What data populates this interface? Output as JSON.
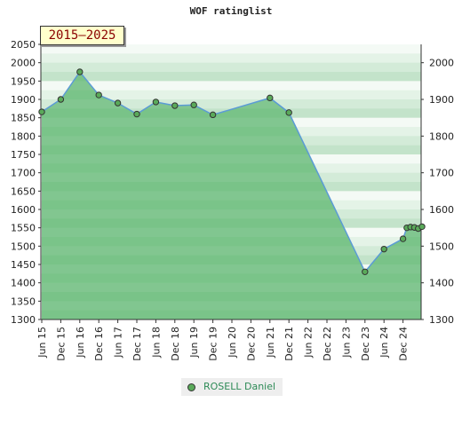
{
  "chart_data": {
    "type": "area",
    "title": "WOF ratinglist",
    "period_label": "2015–2025",
    "xlabel": "",
    "ylabel": "",
    "ylim": [
      1300,
      2050
    ],
    "y_ticks_left": [
      1300,
      1350,
      1400,
      1450,
      1500,
      1550,
      1600,
      1650,
      1700,
      1750,
      1800,
      1850,
      1900,
      1950,
      2000,
      2050
    ],
    "y_ticks_right": [
      1300,
      1400,
      1500,
      1600,
      1700,
      1800,
      1900,
      2000
    ],
    "x_ticks": [
      "Jun 15",
      "Dec 15",
      "Jun 16",
      "Dec 16",
      "Jun 17",
      "Dec 17",
      "Jun 18",
      "Dec 18",
      "Jun 19",
      "Dec 19",
      "Jun 20",
      "Dec 20",
      "Jun 21",
      "Dec 21",
      "Jun 22",
      "Dec 22",
      "Jun 23",
      "Dec 23",
      "Jun 24",
      "Dec 24"
    ],
    "legend": "bottom-center",
    "colors": {
      "area": "#6dbd7d",
      "line": "#5b9bd5",
      "marker": "#5aaa5a"
    },
    "series": [
      {
        "name": "ROSELL Daniel",
        "points": [
          {
            "x": 0.0,
            "y": 1866
          },
          {
            "x": 1.0,
            "y": 1900
          },
          {
            "x": 2.0,
            "y": 1975
          },
          {
            "x": 3.0,
            "y": 1912
          },
          {
            "x": 4.0,
            "y": 1890
          },
          {
            "x": 5.0,
            "y": 1860
          },
          {
            "x": 6.0,
            "y": 1893
          },
          {
            "x": 7.0,
            "y": 1883
          },
          {
            "x": 8.0,
            "y": 1885
          },
          {
            "x": 9.0,
            "y": 1858
          },
          {
            "x": 12.0,
            "y": 1904
          },
          {
            "x": 13.0,
            "y": 1864
          },
          {
            "x": 17.0,
            "y": 1430
          },
          {
            "x": 18.0,
            "y": 1492
          },
          {
            "x": 19.0,
            "y": 1520
          },
          {
            "x": 19.2,
            "y": 1550
          },
          {
            "x": 19.4,
            "y": 1552
          },
          {
            "x": 19.6,
            "y": 1551
          },
          {
            "x": 19.8,
            "y": 1548
          },
          {
            "x": 20.0,
            "y": 1553
          }
        ]
      }
    ]
  }
}
